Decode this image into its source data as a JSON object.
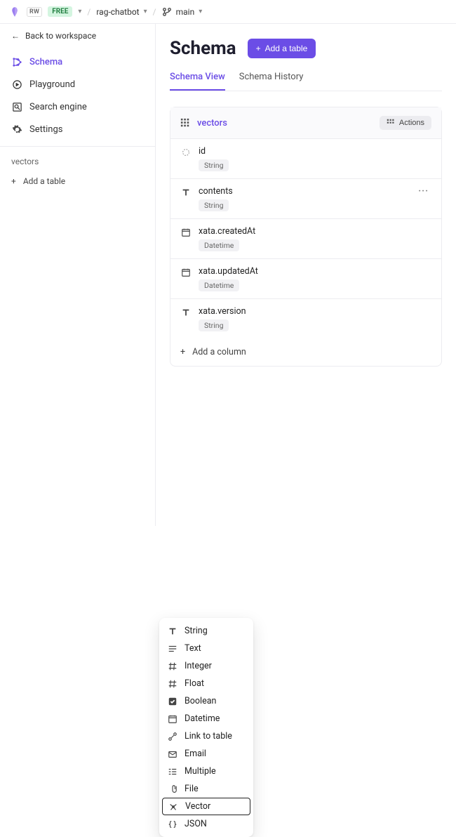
{
  "topbar": {
    "workspace_badge": "RW",
    "plan": "FREE",
    "project": "rag-chatbot",
    "branch": "main"
  },
  "sidebar": {
    "back_label": "Back to workspace",
    "nav": [
      {
        "label": "Schema",
        "icon": "schema"
      },
      {
        "label": "Playground",
        "icon": "playground"
      },
      {
        "label": "Search engine",
        "icon": "search-engine"
      },
      {
        "label": "Settings",
        "icon": "settings"
      }
    ],
    "tables_section": "vectors",
    "add_table": "Add a table"
  },
  "main": {
    "title": "Schema",
    "add_table_btn": "Add a table",
    "tabs": [
      {
        "label": "Schema View"
      },
      {
        "label": "Schema History"
      }
    ],
    "table": {
      "name": "vectors",
      "actions_label": "Actions",
      "columns": [
        {
          "name": "id",
          "type": "String",
          "icon": "id"
        },
        {
          "name": "contents",
          "type": "String",
          "icon": "text",
          "more": true
        },
        {
          "name": "xata.createdAt",
          "type": "Datetime",
          "icon": "datetime"
        },
        {
          "name": "xata.updatedAt",
          "type": "Datetime",
          "icon": "datetime"
        },
        {
          "name": "xata.version",
          "type": "String",
          "icon": "text"
        }
      ],
      "add_column": "Add a column"
    }
  },
  "dropdown": {
    "items": [
      {
        "label": "String",
        "icon": "text"
      },
      {
        "label": "Text",
        "icon": "lines"
      },
      {
        "label": "Integer",
        "icon": "hash"
      },
      {
        "label": "Float",
        "icon": "hash"
      },
      {
        "label": "Boolean",
        "icon": "check"
      },
      {
        "label": "Datetime",
        "icon": "datetime"
      },
      {
        "label": "Link to table",
        "icon": "link"
      },
      {
        "label": "Email",
        "icon": "mail"
      },
      {
        "label": "Multiple",
        "icon": "multi"
      },
      {
        "label": "File",
        "icon": "file"
      },
      {
        "label": "Vector",
        "icon": "vector",
        "selected": true
      },
      {
        "label": "JSON",
        "icon": "json"
      }
    ]
  },
  "colors": {
    "primary": "#6b4de6",
    "border": "#ececf0",
    "badge_bg": "#d4f5e0",
    "badge_fg": "#1a7a3a"
  }
}
